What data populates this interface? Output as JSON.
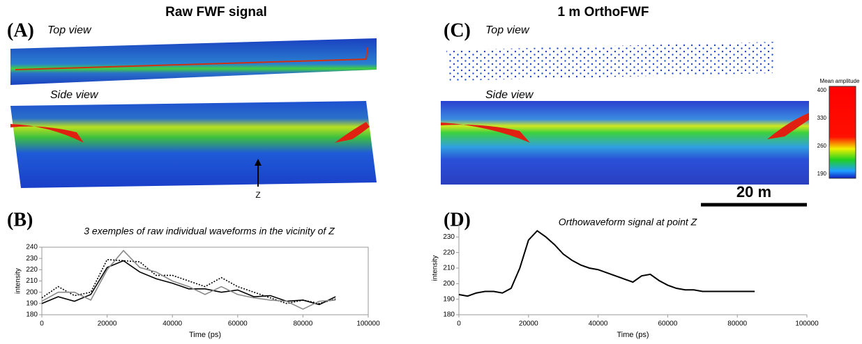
{
  "figure": {
    "left_title": "Raw FWF signal",
    "right_title": "1 m OrthoFWF",
    "panel_a": "(A)",
    "panel_b": "(B)",
    "panel_c": "(C)",
    "panel_d": "(D)",
    "top_view_a": "Top view",
    "side_view_a": "Side view",
    "top_view_c": "Top view",
    "side_view_c": "Side view",
    "point_z": "Z",
    "scale_bar": "20 m",
    "colorbar": {
      "title": "Mean amplitude",
      "ticks": [
        400,
        330,
        260,
        190
      ]
    }
  },
  "chart_data": [
    {
      "type": "line",
      "title": "3 exemples of raw individual waveforms in the vicinity of Z",
      "x_label": "Time (ps)",
      "y_label": "intensity",
      "x": [
        0,
        5000,
        10000,
        15000,
        20000,
        25000,
        30000,
        35000,
        40000,
        45000,
        50000,
        55000,
        60000,
        65000,
        70000,
        75000,
        80000,
        85000,
        90000
      ],
      "series": [
        {
          "color": "#000000",
          "style": "solid",
          "values": [
            190,
            196,
            192,
            198,
            222,
            228,
            218,
            212,
            208,
            203,
            203,
            200,
            202,
            196,
            197,
            192,
            193,
            189,
            196
          ]
        },
        {
          "color": "#000000",
          "style": "dotted",
          "values": [
            195,
            205,
            197,
            200,
            229,
            228,
            227,
            215,
            215,
            210,
            205,
            213,
            205,
            200,
            195,
            190,
            193,
            190,
            194
          ]
        },
        {
          "color": "#888888",
          "style": "solid",
          "values": [
            192,
            200,
            200,
            193,
            220,
            237,
            222,
            218,
            210,
            205,
            198,
            205,
            198,
            195,
            193,
            192,
            185,
            192,
            193
          ]
        }
      ],
      "xlim": [
        0,
        100000
      ],
      "xticks": [
        0,
        20000,
        40000,
        60000,
        80000,
        100000
      ],
      "ylim": [
        180,
        240
      ],
      "yticks": [
        180,
        190,
        200,
        210,
        220,
        230,
        240
      ],
      "frame": true
    },
    {
      "type": "line",
      "title": "Orthowaveform signal at point Z",
      "x_label": "Time (ps)",
      "y_label": "intensity",
      "x": [
        0,
        2500,
        5000,
        7500,
        10000,
        12500,
        15000,
        17500,
        20000,
        22500,
        25000,
        27500,
        30000,
        32500,
        35000,
        37500,
        40000,
        42500,
        45000,
        47500,
        50000,
        52500,
        55000,
        57500,
        60000,
        62500,
        65000,
        67500,
        70000,
        72500,
        75000,
        77500,
        80000,
        82500,
        85000
      ],
      "series": [
        {
          "color": "#000000",
          "style": "solid",
          "values": [
            193,
            192,
            194,
            195,
            195,
            194,
            197,
            210,
            228,
            234,
            230,
            225,
            219,
            215,
            212,
            210,
            209,
            207,
            205,
            203,
            201,
            205,
            206,
            202,
            199,
            197,
            196,
            196,
            195,
            195,
            195,
            195,
            195,
            195,
            195
          ]
        }
      ],
      "xlim": [
        0,
        100000
      ],
      "xticks": [
        0,
        20000,
        40000,
        60000,
        80000,
        100000
      ],
      "ylim": [
        180,
        240
      ],
      "yticks": [
        180,
        190,
        200,
        210,
        220,
        230
      ],
      "frame": false
    }
  ]
}
